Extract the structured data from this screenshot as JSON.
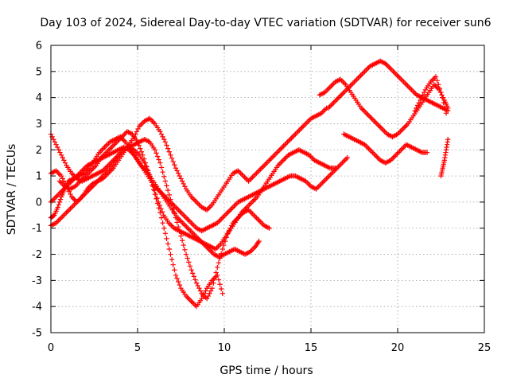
{
  "chart_data": {
    "type": "scatter",
    "title": "Day 103 of 2024, Sidereal Day-to-day VTEC variation (SDTVAR) for receiver sun6",
    "xlabel": "GPS time / hours",
    "ylabel": "SDTVAR / TECUs",
    "xlim": [
      0,
      25
    ],
    "ylim": [
      -5,
      6
    ],
    "xticks": [
      0,
      5,
      10,
      15,
      20,
      25
    ],
    "yticks": [
      -5,
      -4,
      -3,
      -2,
      -1,
      0,
      1,
      2,
      3,
      4,
      5,
      6
    ],
    "grid": true,
    "marker": "plus",
    "color": "#ff0000",
    "series": [
      {
        "x": [
          0.0,
          0.2,
          0.4,
          0.6,
          0.8,
          1.0,
          1.3,
          1.6,
          1.9,
          2.2,
          2.5,
          2.8,
          3.1,
          3.4,
          3.7,
          4.0,
          4.3,
          4.6,
          4.9,
          5.2,
          5.5,
          5.8,
          6.1,
          6.4,
          6.7,
          7.0,
          7.3,
          7.6,
          7.9,
          8.2,
          8.5,
          8.8,
          9.1,
          9.4,
          9.7,
          10.0,
          10.3,
          10.6,
          10.9,
          11.2,
          11.5,
          11.8,
          12.0
        ],
        "y": [
          -0.6,
          -0.5,
          -0.2,
          0.2,
          0.5,
          0.8,
          0.9,
          1.0,
          1.1,
          1.3,
          1.6,
          1.9,
          2.1,
          2.3,
          2.4,
          2.5,
          2.3,
          2.0,
          1.7,
          1.4,
          1.2,
          0.9,
          0.6,
          0.3,
          0.0,
          -0.3,
          -0.6,
          -0.8,
          -1.0,
          -1.2,
          -1.4,
          -1.6,
          -1.8,
          -2.0,
          -2.1,
          -2.0,
          -1.9,
          -1.8,
          -1.9,
          -2.0,
          -1.9,
          -1.7,
          -1.5
        ]
      },
      {
        "x": [
          0.0,
          0.3,
          0.6,
          0.9,
          1.2,
          1.5,
          1.8,
          2.1,
          2.4,
          2.7,
          3.0,
          3.3,
          3.6,
          3.9,
          4.2,
          4.5,
          4.8,
          5.1,
          5.4,
          5.7,
          6.0,
          6.3,
          6.6,
          6.9,
          7.2,
          7.5,
          7.8,
          8.1,
          8.4,
          8.7,
          9.0,
          9.3,
          9.6,
          9.9,
          10.2,
          10.5,
          10.8,
          11.1,
          11.4,
          11.7,
          12.0,
          12.3,
          12.6
        ],
        "y": [
          -0.9,
          -0.8,
          -0.6,
          -0.4,
          -0.2,
          0.0,
          0.2,
          0.4,
          0.6,
          0.8,
          1.0,
          1.2,
          1.5,
          1.8,
          2.0,
          2.1,
          2.2,
          2.3,
          2.4,
          2.3,
          2.0,
          1.5,
          0.8,
          0.1,
          -0.6,
          -1.3,
          -2.0,
          -2.6,
          -3.1,
          -3.5,
          -3.7,
          -3.3,
          -2.5,
          -1.8,
          -1.2,
          -0.8,
          -0.6,
          -0.4,
          -0.3,
          -0.5,
          -0.7,
          -0.9,
          -1.0
        ]
      },
      {
        "x": [
          0.0,
          0.3,
          0.6,
          0.9,
          1.2,
          1.5,
          1.8,
          2.1,
          2.4,
          2.7,
          3.0,
          3.3,
          3.6,
          3.9,
          4.2,
          4.5,
          4.8,
          5.1,
          5.4,
          5.7,
          6.0,
          6.3,
          6.6,
          6.9,
          7.2,
          7.5,
          7.8,
          8.1,
          8.4,
          8.7,
          9.0,
          9.3,
          9.6,
          9.9
        ],
        "y": [
          2.6,
          2.2,
          1.8,
          1.4,
          1.1,
          0.9,
          0.8,
          0.9,
          1.0,
          1.1,
          1.2,
          1.4,
          1.6,
          1.8,
          2.0,
          2.1,
          2.0,
          1.8,
          1.5,
          1.0,
          0.3,
          -0.4,
          -1.2,
          -2.0,
          -2.8,
          -3.3,
          -3.6,
          -3.8,
          -4.0,
          -3.7,
          -3.3,
          -3.0,
          -2.8,
          -3.5
        ]
      },
      {
        "x": [
          0.0,
          0.3,
          0.6,
          0.9,
          1.2,
          1.5,
          1.8,
          2.1,
          2.4,
          2.7,
          3.0,
          3.3,
          3.6,
          3.9,
          4.2,
          4.5,
          4.8,
          5.1,
          5.4,
          5.7,
          6.0,
          6.3,
          6.6,
          6.9,
          7.2,
          7.5,
          7.8,
          8.1,
          8.4,
          8.7,
          9.0,
          9.3,
          9.6,
          9.9,
          10.2,
          10.5,
          10.8,
          11.1,
          11.4,
          11.7,
          12.0,
          12.3,
          12.6,
          12.9,
          13.2,
          13.5,
          13.8,
          14.1,
          14.4,
          14.7,
          15.0,
          15.3,
          15.6,
          15.9
        ],
        "y": [
          1.1,
          1.2,
          1.0,
          0.6,
          0.2,
          0.0,
          0.2,
          0.5,
          0.7,
          0.8,
          0.9,
          1.1,
          1.3,
          1.6,
          1.9,
          2.2,
          2.5,
          2.9,
          3.1,
          3.2,
          3.0,
          2.7,
          2.3,
          1.8,
          1.3,
          0.9,
          0.5,
          0.2,
          0.0,
          -0.2,
          -0.3,
          -0.1,
          0.2,
          0.5,
          0.8,
          1.1,
          1.2,
          1.0,
          0.8,
          1.0,
          1.2,
          1.4,
          1.6,
          1.8,
          2.0,
          2.2,
          2.4,
          2.6,
          2.8,
          3.0,
          3.2,
          3.3,
          3.4,
          3.6
        ]
      },
      {
        "x": [
          0.0,
          0.3,
          0.6,
          0.9,
          1.2,
          1.5,
          1.8,
          2.1,
          2.4,
          2.7,
          3.0,
          3.3,
          3.6,
          3.9,
          4.2,
          4.5,
          4.8,
          5.1,
          5.4,
          5.7,
          6.0,
          6.3,
          6.6,
          6.9,
          7.2,
          7.5,
          7.8,
          8.1,
          8.4,
          8.7,
          9.0,
          9.3,
          9.6,
          9.9,
          10.2,
          10.5,
          10.8,
          11.1,
          11.4,
          11.7,
          12.0,
          12.3,
          12.6,
          12.9,
          13.2,
          13.5,
          13.8,
          14.1,
          14.4,
          14.7,
          15.0,
          15.3,
          15.6,
          15.9,
          16.2,
          16.5,
          16.8,
          17.1
        ],
        "y": [
          0.0,
          0.2,
          0.4,
          0.6,
          0.8,
          1.0,
          1.2,
          1.4,
          1.5,
          1.6,
          1.7,
          1.8,
          1.9,
          2.0,
          2.1,
          2.0,
          1.8,
          1.5,
          1.2,
          0.9,
          0.6,
          0.4,
          0.2,
          0.0,
          -0.2,
          -0.4,
          -0.6,
          -0.8,
          -1.0,
          -1.1,
          -1.0,
          -0.9,
          -0.8,
          -0.6,
          -0.4,
          -0.2,
          0.0,
          0.1,
          0.2,
          0.3,
          0.4,
          0.5,
          0.6,
          0.7,
          0.8,
          0.9,
          1.0,
          1.0,
          0.9,
          0.8,
          0.6,
          0.5,
          0.7,
          0.9,
          1.1,
          1.3,
          1.5,
          1.7
        ]
      },
      {
        "x": [
          0.5,
          0.8,
          1.1,
          1.4,
          1.7,
          2.0,
          2.3,
          2.6,
          2.9,
          3.2,
          3.5,
          3.8,
          4.1,
          4.4,
          4.7,
          5.0,
          5.3,
          5.6,
          5.9,
          6.2,
          6.5,
          6.8,
          7.1,
          7.4,
          7.7,
          8.0,
          8.3,
          8.6,
          8.9,
          9.2,
          9.5,
          9.8,
          10.1,
          10.4,
          10.7,
          11.0,
          11.3,
          11.6,
          11.9,
          12.2,
          12.5,
          12.8,
          13.1,
          13.4,
          13.7,
          14.0,
          14.3,
          14.6,
          14.9,
          15.2,
          15.5,
          15.8,
          16.1,
          16.4
        ],
        "y": [
          0.8,
          0.6,
          0.5,
          0.6,
          0.8,
          1.0,
          1.2,
          1.4,
          1.7,
          1.9,
          2.1,
          2.3,
          2.5,
          2.7,
          2.6,
          2.3,
          1.8,
          1.2,
          0.6,
          0.0,
          -0.5,
          -0.8,
          -1.0,
          -1.1,
          -1.2,
          -1.3,
          -1.4,
          -1.5,
          -1.6,
          -1.7,
          -1.8,
          -1.6,
          -1.3,
          -1.0,
          -0.7,
          -0.4,
          -0.2,
          0.0,
          0.2,
          0.5,
          0.8,
          1.1,
          1.4,
          1.6,
          1.8,
          1.9,
          2.0,
          1.9,
          1.8,
          1.6,
          1.5,
          1.4,
          1.3,
          1.3
        ]
      },
      {
        "x": [
          15.5,
          15.8,
          16.1,
          16.4,
          16.7,
          17.0,
          17.3,
          17.6,
          17.9,
          18.2,
          18.5,
          18.8,
          19.1,
          19.4,
          19.7,
          20.0,
          20.3,
          20.6,
          20.9,
          21.2,
          21.5,
          21.8,
          22.1,
          22.4,
          22.7,
          22.9
        ],
        "y": [
          4.1,
          4.2,
          4.4,
          4.6,
          4.7,
          4.5,
          4.2,
          3.9,
          3.6,
          3.4,
          3.2,
          3.0,
          2.8,
          2.6,
          2.5,
          2.6,
          2.8,
          3.0,
          3.3,
          3.6,
          3.9,
          4.2,
          4.5,
          4.3,
          3.9,
          3.6
        ]
      },
      {
        "x": [
          16.0,
          16.3,
          16.6,
          16.9,
          17.2,
          17.5,
          17.8,
          18.1,
          18.4,
          18.7,
          19.0,
          19.3,
          19.6,
          19.9,
          20.2,
          20.5,
          20.8,
          21.1,
          21.4,
          21.7,
          22.0,
          22.3,
          22.6,
          22.9
        ],
        "y": [
          3.6,
          3.8,
          4.0,
          4.2,
          4.4,
          4.6,
          4.8,
          5.0,
          5.2,
          5.3,
          5.4,
          5.3,
          5.1,
          4.9,
          4.7,
          4.5,
          4.3,
          4.1,
          4.0,
          3.9,
          3.8,
          3.7,
          3.6,
          3.5
        ]
      },
      {
        "x": [
          16.9,
          17.2,
          17.5,
          17.8,
          18.1,
          18.4,
          18.7,
          19.0,
          19.3,
          19.6,
          19.9,
          20.2,
          20.5,
          20.8,
          21.1,
          21.4,
          21.7
        ],
        "y": [
          2.6,
          2.5,
          2.4,
          2.3,
          2.2,
          2.0,
          1.8,
          1.6,
          1.5,
          1.6,
          1.8,
          2.0,
          2.2,
          2.1,
          2.0,
          1.9,
          1.9
        ]
      },
      {
        "x": [
          21.0,
          21.3,
          21.6,
          21.9,
          22.2,
          22.5,
          22.8
        ],
        "y": [
          3.5,
          3.9,
          4.3,
          4.6,
          4.8,
          4.2,
          3.4
        ]
      },
      {
        "x": [
          22.5,
          22.6,
          22.7,
          22.8,
          22.9
        ],
        "y": [
          1.0,
          1.3,
          1.6,
          2.0,
          2.4
        ]
      }
    ]
  }
}
